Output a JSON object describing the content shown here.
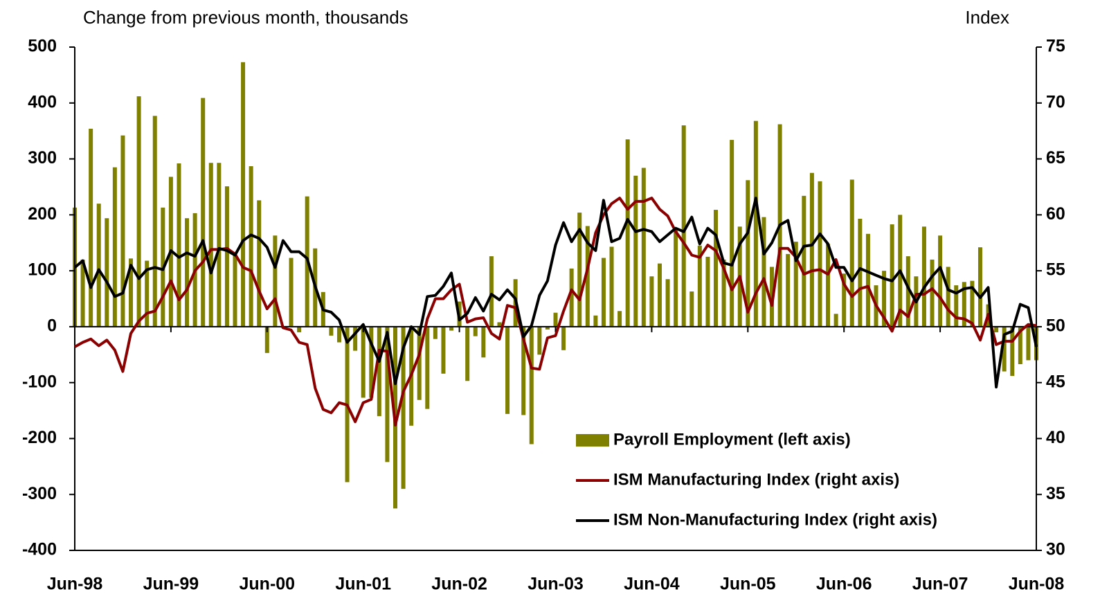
{
  "chart_data": {
    "type": "bar_line",
    "ylabel": "Change from previous month, thousands",
    "y2label": "Index",
    "categories": [
      "Jun-98",
      null,
      null,
      null,
      null,
      null,
      null,
      null,
      null,
      null,
      null,
      null,
      "Jun-99",
      null,
      null,
      null,
      null,
      null,
      null,
      null,
      null,
      null,
      null,
      null,
      "Jun-00",
      null,
      null,
      null,
      null,
      null,
      null,
      null,
      null,
      null,
      null,
      null,
      "Jun-01",
      null,
      null,
      null,
      null,
      null,
      null,
      null,
      null,
      null,
      null,
      null,
      "Jun-02",
      null,
      null,
      null,
      null,
      null,
      null,
      null,
      null,
      null,
      null,
      null,
      "Jun-03",
      null,
      null,
      null,
      null,
      null,
      null,
      null,
      null,
      null,
      null,
      null,
      "Jun-04",
      null,
      null,
      null,
      null,
      null,
      null,
      null,
      null,
      null,
      null,
      null,
      "Jun-05",
      null,
      null,
      null,
      null,
      null,
      null,
      null,
      null,
      null,
      null,
      null,
      "Jun-06",
      null,
      null,
      null,
      null,
      null,
      null,
      null,
      null,
      null,
      null,
      null,
      "Jun-07",
      null,
      null,
      null,
      null,
      null,
      null,
      null,
      null,
      null,
      null,
      null,
      "Jun-08"
    ],
    "series": [
      {
        "name": "Payroll Employment (left axis)",
        "kind": "bar",
        "axis": "y",
        "color": "#808000",
        "values": [
          213,
          120,
          354,
          220,
          194,
          285,
          342,
          122,
          412,
          118,
          377,
          213,
          268,
          292,
          194,
          203,
          409,
          293,
          293,
          251,
          130,
          473,
          287,
          226,
          -47,
          163,
          -2,
          123,
          -10,
          233,
          140,
          62,
          -16,
          -28,
          -278,
          -43,
          -127,
          -127,
          -160,
          -242,
          -325,
          -290,
          -177,
          -131,
          -147,
          -22,
          -84,
          -7,
          45,
          -97,
          -17,
          -55,
          126,
          8,
          -156,
          85,
          -158,
          -210,
          -50,
          -5,
          25,
          -42,
          104,
          204,
          180,
          20,
          123,
          143,
          28,
          335,
          270,
          284,
          90,
          113,
          85,
          176,
          360,
          63,
          145,
          125,
          209,
          120,
          334,
          179,
          262,
          368,
          196,
          107,
          362,
          130,
          152,
          234,
          275,
          260,
          148,
          23,
          95,
          263,
          193,
          166,
          74,
          100,
          183,
          200,
          126,
          90,
          179,
          120,
          163,
          107,
          74,
          80,
          82,
          142,
          40,
          -10,
          -80,
          -88,
          -67,
          -60,
          -60
        ]
      },
      {
        "name": "ISM Manufacturing Index (right axis)",
        "kind": "line",
        "axis": "y2",
        "color": "#8b0000",
        "values": [
          48.2,
          48.6,
          48.9,
          48.3,
          48.8,
          47.9,
          46.0,
          49.4,
          50.5,
          51.2,
          51.4,
          52.7,
          54.1,
          52.4,
          53.3,
          55.0,
          55.8,
          56.9,
          56.9,
          57.0,
          56.5,
          55.3,
          55.0,
          53.2,
          51.6,
          52.5,
          49.9,
          49.7,
          48.6,
          48.4,
          44.5,
          42.6,
          42.3,
          43.2,
          43.0,
          41.5,
          43.2,
          43.5,
          47.9,
          47.8,
          41.2,
          44.2,
          45.7,
          47.5,
          50.7,
          52.5,
          52.5,
          53.3,
          53.8,
          50.4,
          50.7,
          50.8,
          49.4,
          48.9,
          51.9,
          51.7,
          48.9,
          46.3,
          46.2,
          49.0,
          49.2,
          51.4,
          53.3,
          52.4,
          55.2,
          58.4,
          60.0,
          61.0,
          61.5,
          60.5,
          61.2,
          61.2,
          61.5,
          60.5,
          59.9,
          58.5,
          57.5,
          56.4,
          56.2,
          57.3,
          56.8,
          55.2,
          53.3,
          54.5,
          51.3,
          53.0,
          54.3,
          51.9,
          57.0,
          57.0,
          56.2,
          54.7,
          55.0,
          55.1,
          54.7,
          56.0,
          53.8,
          52.7,
          53.4,
          53.6,
          51.9,
          50.8,
          49.6,
          51.5,
          50.9,
          52.9,
          52.9,
          53.4,
          52.6,
          51.5,
          50.8,
          50.7,
          50.3,
          48.8,
          51.1,
          48.4,
          48.7,
          48.7,
          49.6,
          50.2,
          50.1
        ]
      },
      {
        "name": "ISM Non-Manufacturing Index (right axis)",
        "kind": "line",
        "axis": "y2",
        "color": "#000000",
        "values": [
          55.3,
          55.9,
          53.5,
          55.1,
          54.0,
          52.7,
          53.0,
          55.5,
          54.3,
          55.1,
          55.3,
          55.1,
          56.8,
          56.2,
          56.6,
          56.3,
          57.7,
          54.8,
          57.0,
          56.8,
          56.4,
          57.7,
          58.2,
          57.9,
          57.1,
          55.3,
          57.7,
          56.7,
          56.7,
          56.1,
          53.6,
          51.5,
          51.3,
          50.6,
          48.6,
          49.4,
          50.2,
          48.5,
          46.9,
          49.5,
          44.9,
          48.1,
          50.0,
          49.3,
          52.7,
          52.8,
          53.6,
          54.8,
          50.6,
          51.2,
          52.6,
          51.4,
          52.9,
          52.4,
          53.3,
          52.5,
          49.1,
          50.1,
          52.8,
          54.1,
          57.3,
          59.3,
          57.6,
          58.7,
          57.5,
          56.8,
          61.3,
          57.6,
          57.9,
          59.6,
          58.5,
          58.7,
          58.5,
          57.6,
          58.2,
          58.8,
          58.5,
          59.8,
          57.4,
          58.8,
          58.2,
          55.7,
          55.5,
          57.4,
          58.4,
          61.5,
          56.5,
          57.5,
          59.1,
          59.5,
          55.9,
          57.2,
          57.3,
          58.3,
          57.4,
          55.3,
          55.3,
          54.1,
          55.2,
          54.9,
          54.6,
          54.3,
          54.1,
          55.0,
          53.5,
          52.2,
          53.5,
          54.5,
          55.3,
          53.3,
          53.0,
          53.4,
          53.5,
          52.6,
          53.5,
          44.6,
          49.3,
          49.6,
          52.0,
          51.7,
          48.2
        ]
      }
    ],
    "ylim": [
      -400,
      500
    ],
    "yticks": [
      -400,
      -300,
      -200,
      -100,
      0,
      100,
      200,
      300,
      400,
      500
    ],
    "y2lim": [
      30,
      75
    ],
    "y2ticks": [
      30,
      35,
      40,
      45,
      50,
      55,
      60,
      65,
      70,
      75
    ],
    "legend": "lower right",
    "grid": false
  }
}
